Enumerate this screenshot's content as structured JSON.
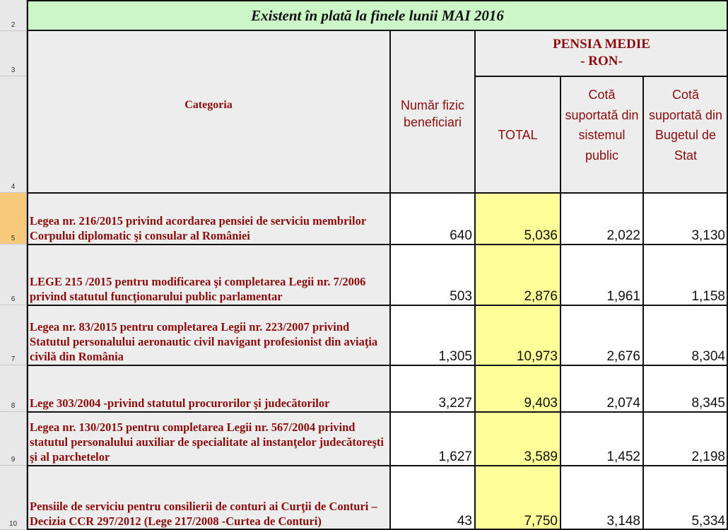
{
  "title": "Existent în plată la finele lunii  MAI  2016",
  "row_numbers": [
    "2",
    "3",
    "4",
    "5",
    "6",
    "7",
    "8",
    "9",
    "10"
  ],
  "headers": {
    "categoria": "Categoria",
    "numar": "Număr fizic beneficiari",
    "pensia_medie": "PENSIA MEDIE",
    "ron": "- RON-",
    "total": "TOTAL",
    "cota_public": "Cotă suportată din sistemul public",
    "cota_buget": "Cotă suportată din Bugetul de Stat"
  },
  "rows": [
    {
      "categoria": "Legea nr. 216/2015 privind acordarea pensiei de serviciu membrilor Corpului diplomatic şi consular al României",
      "numar": "640",
      "total": "5,036",
      "public": "2,022",
      "buget": "3,130"
    },
    {
      "categoria": "LEGE 215 /2015  pentru modificarea şi completarea Legii nr. 7/2006 privind statutul funcţionarului public parlamentar",
      "numar": "503",
      "total": "2,876",
      "public": "1,961",
      "buget": "1,158"
    },
    {
      "categoria": " Legea nr. 83/2015 pentru completarea Legii nr. 223/2007 privind Statutul personalului aeronautic civil navigant profesionist din aviaţia civilă din România",
      "numar": "1,305",
      "total": "10,973",
      "public": "2,676",
      "buget": "8,304"
    },
    {
      "categoria": "Lege 303/2004 -privind statutul procurorilor şi judecătorilor",
      "numar": "3,227",
      "total": "9,403",
      "public": "2,074",
      "buget": "8,345"
    },
    {
      "categoria": "Legea nr. 130/2015 pentru completarea Legii nr. 567/2004 privind statutul personalului auxiliar de specialitate al instanţelor judecătoreşti şi al parchetelor",
      "numar": "1,627",
      "total": "3,589",
      "public": "1,452",
      "buget": "2,198"
    },
    {
      "categoria": "Pensiile de serviciu pentru consilierii de conturi ai Curţii de Conturi – Decizia CCR 297/2012 (Lege 217/2008 -Curtea de Conturi)",
      "numar": "43",
      "total": "7,750",
      "public": "3,148",
      "buget": "5,334"
    }
  ]
}
